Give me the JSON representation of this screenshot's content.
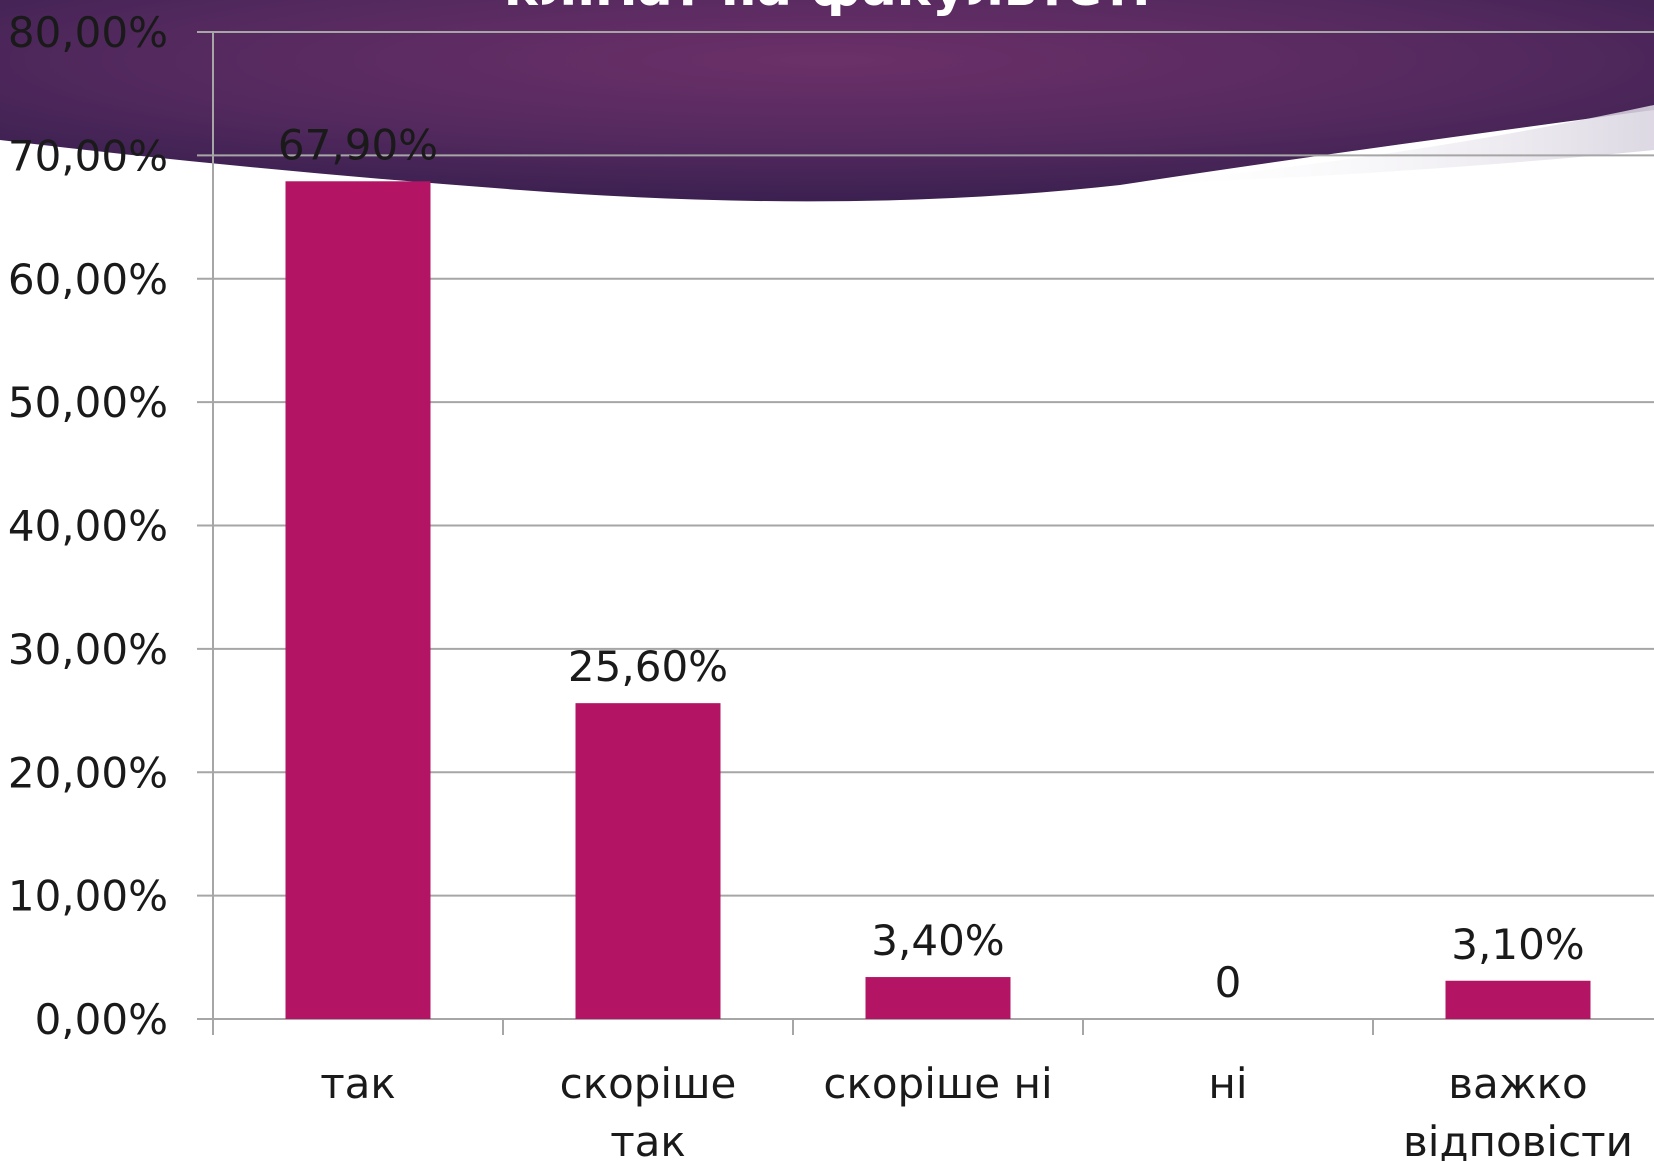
{
  "chart_data": {
    "type": "bar",
    "title": "клімат на факультеті",
    "categories": [
      [
        "так"
      ],
      [
        "скоріше",
        "так"
      ],
      [
        "скоріше ні"
      ],
      [
        "ні"
      ],
      [
        "важко",
        "відповісти"
      ]
    ],
    "values": [
      67.9,
      25.6,
      3.4,
      0,
      3.1
    ],
    "data_labels": [
      "67,90%",
      "25,60%",
      "3,40%",
      "0",
      "3,10%"
    ],
    "y_ticks": [
      "0,00%",
      "10,00%",
      "20,00%",
      "30,00%",
      "40,00%",
      "50,00%",
      "60,00%",
      "70,00%",
      "80,00%"
    ],
    "ylim": [
      0,
      80
    ],
    "grid": true,
    "legend": "none",
    "colors": {
      "bar": "#b41464",
      "grid": "#a6a6a6",
      "banner_dark": "#3b2050",
      "banner_mid": "#6b3068"
    }
  }
}
